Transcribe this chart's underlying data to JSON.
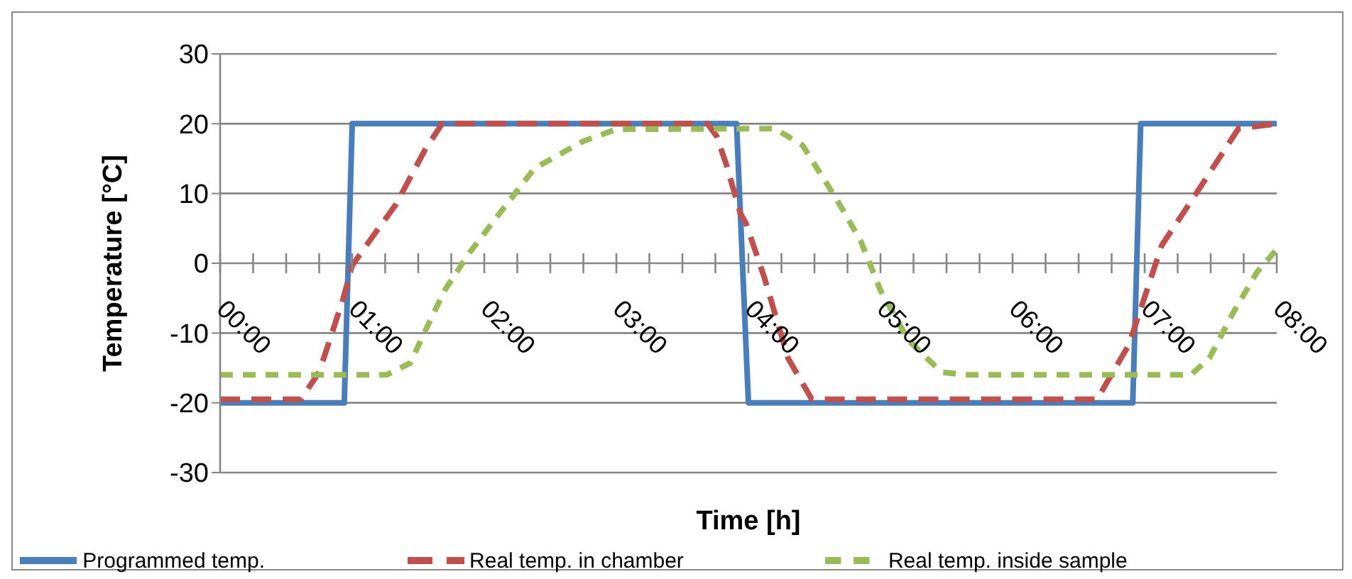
{
  "chart_data": {
    "type": "line",
    "xlabel": "Time [h]",
    "ylabel": "Temperature [°C]",
    "xlim": [
      0,
      8
    ],
    "xticks": [
      {
        "value": 0,
        "label": "00:00"
      },
      {
        "value": 0.25,
        "label": null
      },
      {
        "value": 0.5,
        "label": null
      },
      {
        "value": 0.75,
        "label": null
      },
      {
        "value": 1,
        "label": "01:00"
      },
      {
        "value": 1.25,
        "label": null
      },
      {
        "value": 1.5,
        "label": null
      },
      {
        "value": 1.75,
        "label": null
      },
      {
        "value": 2,
        "label": "02:00"
      },
      {
        "value": 2.25,
        "label": null
      },
      {
        "value": 2.5,
        "label": null
      },
      {
        "value": 2.75,
        "label": null
      },
      {
        "value": 3,
        "label": "03:00"
      },
      {
        "value": 3.25,
        "label": null
      },
      {
        "value": 3.5,
        "label": null
      },
      {
        "value": 3.75,
        "label": null
      },
      {
        "value": 4,
        "label": "04:00"
      },
      {
        "value": 4.25,
        "label": null
      },
      {
        "value": 4.5,
        "label": null
      },
      {
        "value": 4.75,
        "label": null
      },
      {
        "value": 5,
        "label": "05:00"
      },
      {
        "value": 5.25,
        "label": null
      },
      {
        "value": 5.5,
        "label": null
      },
      {
        "value": 5.75,
        "label": null
      },
      {
        "value": 6,
        "label": "06:00"
      },
      {
        "value": 6.25,
        "label": null
      },
      {
        "value": 6.5,
        "label": null
      },
      {
        "value": 6.75,
        "label": null
      },
      {
        "value": 7,
        "label": "07:00"
      },
      {
        "value": 7.25,
        "label": null
      },
      {
        "value": 7.5,
        "label": null
      },
      {
        "value": 7.75,
        "label": null
      },
      {
        "value": 8,
        "label": "08:00"
      }
    ],
    "ylim": [
      -30,
      30
    ],
    "yticks": [
      -30,
      -20,
      -10,
      0,
      10,
      20,
      30
    ],
    "grid": "y",
    "legend": "bottom",
    "marker": "none",
    "series": [
      {
        "name": "Programmed temp.",
        "color": "#4a7ebb",
        "line_style": "solid",
        "x": [
          0,
          0.94,
          1.0,
          3.91,
          4.0,
          6.91,
          6.97,
          8.0
        ],
        "values": [
          -20,
          -20,
          20,
          20,
          -20,
          -20,
          20,
          20
        ]
      },
      {
        "name": "Real temp. in chamber",
        "color": "#c0504d",
        "line_style": "dashed",
        "x": [
          0,
          0.61,
          0.75,
          0.93,
          1.0,
          1.12,
          1.33,
          1.55,
          1.68,
          3.69,
          3.76,
          3.83,
          3.94,
          3.98,
          4.12,
          4.3,
          4.48,
          6.64,
          6.88,
          7.13,
          7.38,
          7.71,
          8.0
        ],
        "values": [
          -19.5,
          -19.5,
          -15.6,
          -5.2,
          -0.3,
          2.9,
          8.4,
          16.2,
          20,
          20,
          18.2,
          14.3,
          7.1,
          5.8,
          -2,
          -13.6,
          -19.5,
          -19.5,
          -11.7,
          2.6,
          9.7,
          19.3,
          20
        ]
      },
      {
        "name": "Real temp. inside sample",
        "color": "#9bbb59",
        "line_style": "dashed",
        "x": [
          0,
          1.26,
          1.44,
          1.55,
          1.7,
          1.88,
          2.09,
          2.38,
          2.75,
          3.0,
          4.2,
          4.41,
          4.67,
          4.85,
          5.0,
          5.21,
          5.46,
          5.64,
          7.35,
          7.49,
          7.67,
          7.85,
          8.0
        ],
        "values": [
          -16,
          -16,
          -14.3,
          -9.8,
          -3.9,
          1.3,
          6.5,
          13.6,
          17.5,
          19.2,
          19.3,
          16.9,
          9.1,
          3.2,
          -3.9,
          -11,
          -15.6,
          -16,
          -16,
          -13.6,
          -7.1,
          -1.3,
          2
        ]
      }
    ]
  }
}
